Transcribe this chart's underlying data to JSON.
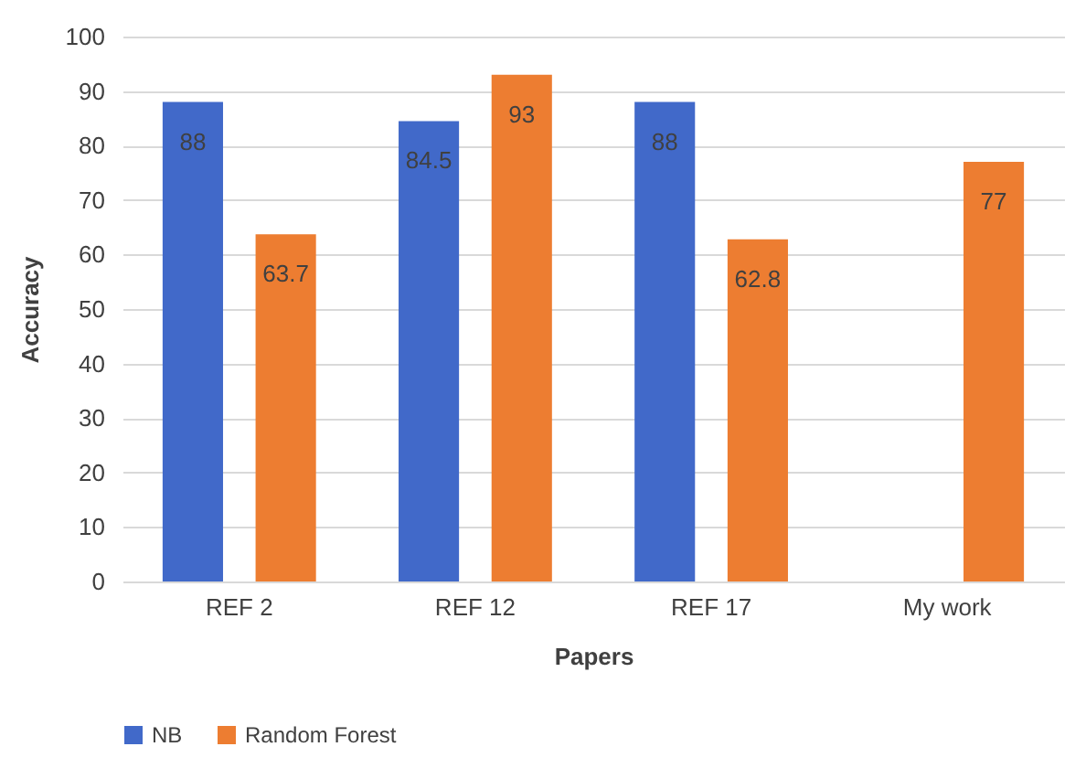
{
  "chart_data": {
    "type": "bar",
    "xlabel": "Papers",
    "ylabel": "Accuracy",
    "categories": [
      "REF 2",
      "REF 12",
      "REF 17",
      "My work"
    ],
    "series": [
      {
        "name": "NB",
        "color": "#4169c9",
        "values": [
          88,
          84.5,
          88,
          null
        ]
      },
      {
        "name": "Random Forest",
        "color": "#ed7d31",
        "values": [
          63.7,
          93,
          62.8,
          77
        ]
      }
    ],
    "ylim": [
      0,
      100
    ],
    "yticks": [
      0,
      10,
      20,
      30,
      40,
      50,
      60,
      70,
      80,
      90,
      100
    ],
    "grid": "y",
    "legend": "bottom",
    "data_labels": true
  }
}
